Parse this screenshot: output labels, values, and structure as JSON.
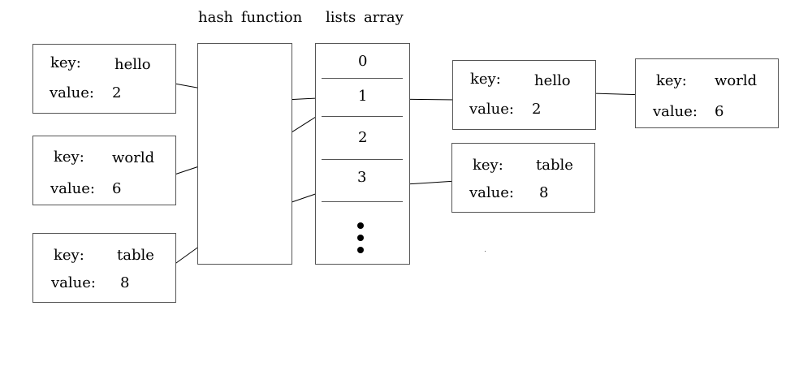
{
  "headings": {
    "hash_function": "hash function",
    "lists_array": "lists array"
  },
  "labels": {
    "key": "key:",
    "value": "value:"
  },
  "inputs": [
    {
      "key": "hello",
      "value": "2"
    },
    {
      "key": "world",
      "value": "6"
    },
    {
      "key": "table",
      "value": "8"
    }
  ],
  "array_slots": [
    "0",
    "1",
    "2",
    "3"
  ],
  "chains": [
    {
      "slot": "1",
      "nodes": [
        {
          "key": "hello",
          "value": "2"
        },
        {
          "key": "world",
          "value": "6"
        }
      ]
    },
    {
      "slot": "3",
      "nodes": [
        {
          "key": "table",
          "value": "8"
        }
      ]
    }
  ]
}
